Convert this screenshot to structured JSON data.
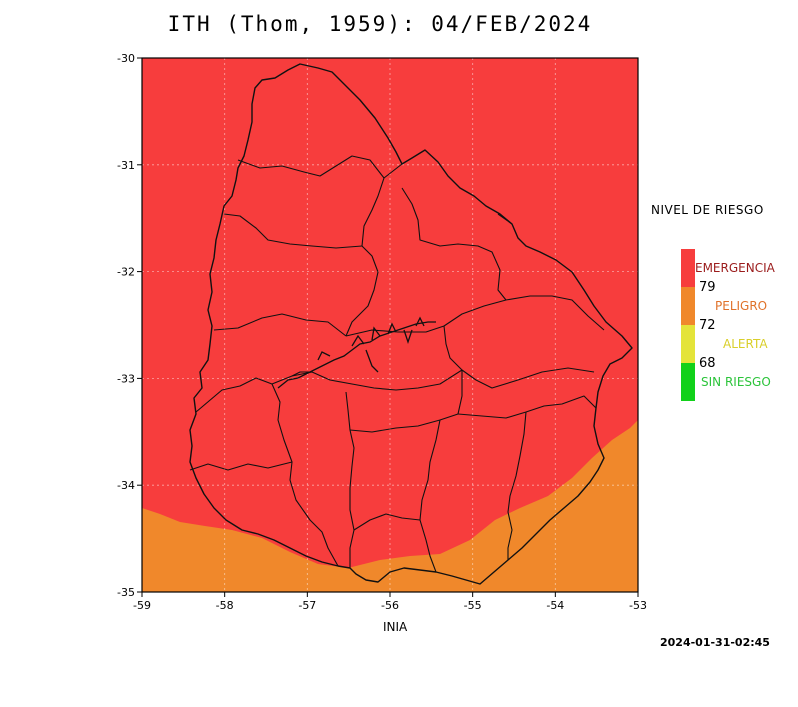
{
  "title": "ITH (Thom, 1959): 04/FEB/2024",
  "map": {
    "lon_range": [
      -59,
      -53
    ],
    "lat_range": [
      -35,
      -30
    ],
    "lon_ticks": [
      "-59",
      "-58",
      "-57",
      "-56",
      "-55",
      "-54",
      "-53"
    ],
    "lat_ticks": [
      "-30",
      "-31",
      "-32",
      "-33",
      "-34",
      "-35"
    ],
    "grid": true,
    "colors": {
      "emergencia": "#f73d3d",
      "peligro": "#f0882b",
      "alerta": "#e4e43a",
      "sin_riesgo": "#11d11a"
    }
  },
  "legend": {
    "title": "NIVEL DE RIESGO",
    "levels": [
      {
        "label": "EMERGENCIA",
        "color": "#f73d3d",
        "text_color": "#9b1c1c"
      },
      {
        "label": "PELIGRO",
        "color": "#f0882b",
        "text_color": "#e0722a"
      },
      {
        "label": "ALERTA",
        "color": "#e4e43a",
        "text_color": "#d9cf2a"
      },
      {
        "label": "SIN RIESGO",
        "color": "#11d11a",
        "text_color": "#2bc43a"
      }
    ],
    "thresholds": [
      "79",
      "72",
      "68"
    ]
  },
  "source": "INIA",
  "timestamp": "2024-01-31-02:45"
}
